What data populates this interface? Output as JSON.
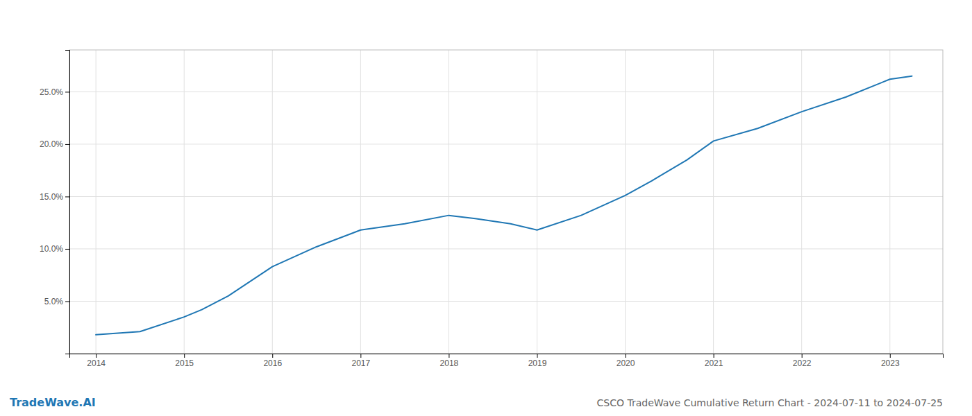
{
  "chart_data": {
    "type": "line",
    "title": "CSCO TradeWave Cumulative Return Chart - 2024-07-11 to 2024-07-25",
    "annotations": [
      "TradeWave.AI"
    ],
    "x": [
      2014,
      2014.5,
      2015,
      2015.2,
      2015.5,
      2016,
      2016.5,
      2017,
      2017.5,
      2018,
      2018.3,
      2018.7,
      2019,
      2019.5,
      2020,
      2020.3,
      2020.7,
      2021,
      2021.5,
      2022,
      2022.5,
      2023,
      2023.25
    ],
    "values": [
      1.8,
      2.1,
      3.5,
      4.2,
      5.5,
      8.3,
      10.2,
      11.8,
      12.4,
      13.2,
      12.9,
      12.4,
      11.8,
      13.2,
      15.1,
      16.5,
      18.5,
      20.3,
      21.5,
      23.1,
      24.5,
      26.2,
      26.5
    ],
    "xlim": [
      2013.7,
      2023.6
    ],
    "ylim": [
      0,
      29
    ],
    "xticks": [
      2014,
      2015,
      2016,
      2017,
      2018,
      2019,
      2020,
      2021,
      2022,
      2023
    ],
    "yticks": [
      {
        "value": 5.0,
        "label": "5.0%"
      },
      {
        "value": 10.0,
        "label": "10.0%"
      },
      {
        "value": 15.0,
        "label": "15.0%"
      },
      {
        "value": 20.0,
        "label": "20.0%"
      },
      {
        "value": 25.0,
        "label": "25.0%"
      }
    ],
    "grid": true
  }
}
